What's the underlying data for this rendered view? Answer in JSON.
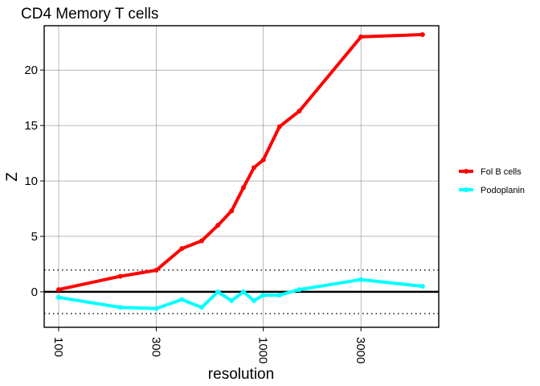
{
  "chart_data": {
    "type": "line",
    "title": "CD4 Memory T cells",
    "xlabel": "resolution",
    "ylabel": "Z",
    "x_scale": "log10",
    "xlim": [
      85,
      7200
    ],
    "ylim": [
      -3.2,
      24.0
    ],
    "x_ticks": [
      100,
      300,
      1000,
      3000
    ],
    "x_tick_labels": [
      "100",
      "300",
      "1000",
      "3000"
    ],
    "y_ticks": [
      0,
      5,
      10,
      15,
      20
    ],
    "y_tick_labels": [
      "0",
      "5",
      "10",
      "15",
      "20"
    ],
    "grid": true,
    "legend_position": "right",
    "reference_lines": [
      {
        "y": 0,
        "style": "solid",
        "color": "#000000"
      },
      {
        "y": 1.96,
        "style": "dotted",
        "color": "#000000"
      },
      {
        "y": -1.96,
        "style": "dotted",
        "color": "#000000"
      }
    ],
    "series": [
      {
        "name": "Fol B cells",
        "color": "#ff0000",
        "x": [
          100,
          200,
          300,
          400,
          500,
          600,
          700,
          800,
          900,
          1000,
          1200,
          1500,
          3000,
          6000
        ],
        "y": [
          0.2,
          1.4,
          1.95,
          3.9,
          4.6,
          6.0,
          7.3,
          9.4,
          11.2,
          11.9,
          14.9,
          16.3,
          23.0,
          23.2
        ]
      },
      {
        "name": "Podoplanin",
        "color": "#00ffff",
        "x": [
          100,
          200,
          300,
          400,
          500,
          600,
          700,
          800,
          900,
          1000,
          1200,
          1500,
          3000,
          6000
        ],
        "y": [
          -0.5,
          -1.4,
          -1.5,
          -0.7,
          -1.4,
          0.0,
          -0.8,
          0.0,
          -0.8,
          -0.3,
          -0.3,
          0.2,
          1.1,
          0.5
        ]
      }
    ]
  }
}
